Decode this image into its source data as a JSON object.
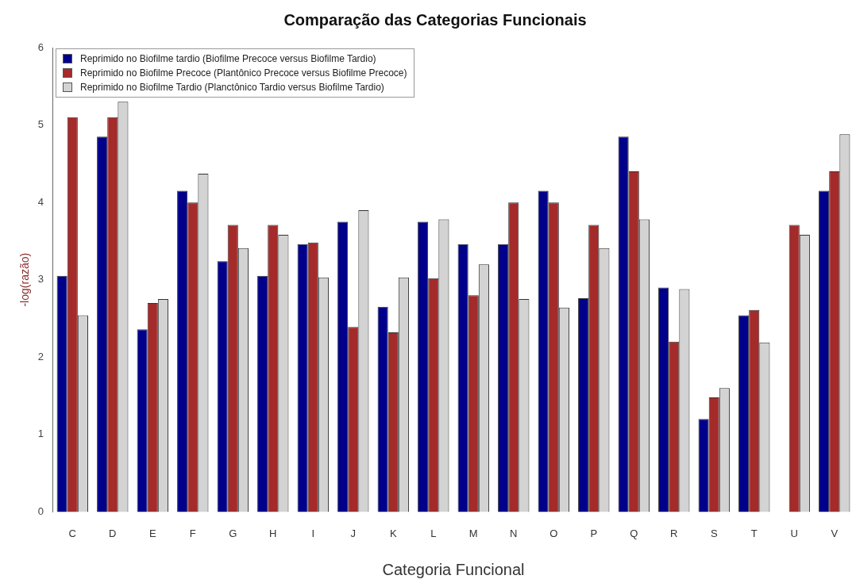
{
  "chart_data": {
    "type": "bar",
    "title": "Comparação das Categorias Funcionais",
    "xlabel": "Categoria Funcional",
    "ylabel": "-log(razão)",
    "categories": [
      "C",
      "D",
      "E",
      "F",
      "G",
      "H",
      "I",
      "J",
      "K",
      "L",
      "M",
      "N",
      "O",
      "P",
      "Q",
      "R",
      "S",
      "T",
      "U",
      "V"
    ],
    "series": [
      {
        "name": "Reprimido no Biofilme tardio (Biofilme Precoce versus Biofilme Tardio)",
        "color": "#00008b",
        "values": [
          3.05,
          4.85,
          2.36,
          4.15,
          3.24,
          3.05,
          3.46,
          3.75,
          2.65,
          3.75,
          3.46,
          3.46,
          4.15,
          2.76,
          4.85,
          2.9,
          1.2,
          2.54,
          null,
          4.15
        ]
      },
      {
        "name": "Reprimido no Biofilme Precoce (Plantônico Precoce versus Biofilme Precoce)",
        "color": "#a52a2a",
        "values": [
          5.1,
          5.1,
          2.7,
          4.0,
          3.71,
          3.71,
          3.48,
          2.39,
          2.32,
          3.02,
          2.8,
          4.0,
          4.0,
          3.71,
          4.4,
          2.2,
          1.48,
          2.61,
          3.71,
          4.4
        ]
      },
      {
        "name": "Reprimido no Biofilme Tardio (Planctônico Tardio versus Biofilme Tardio)",
        "color": "#d3d3d3",
        "values": [
          2.54,
          5.3,
          2.75,
          4.37,
          3.41,
          3.58,
          3.03,
          3.9,
          3.03,
          3.78,
          3.2,
          2.75,
          2.64,
          3.41,
          3.78,
          2.88,
          1.6,
          2.19,
          3.58,
          4.88
        ]
      }
    ],
    "ylim": [
      0,
      6
    ],
    "yticks": [
      0,
      1,
      2,
      3,
      4,
      5,
      6
    ],
    "legend": "top left",
    "grid": false
  }
}
